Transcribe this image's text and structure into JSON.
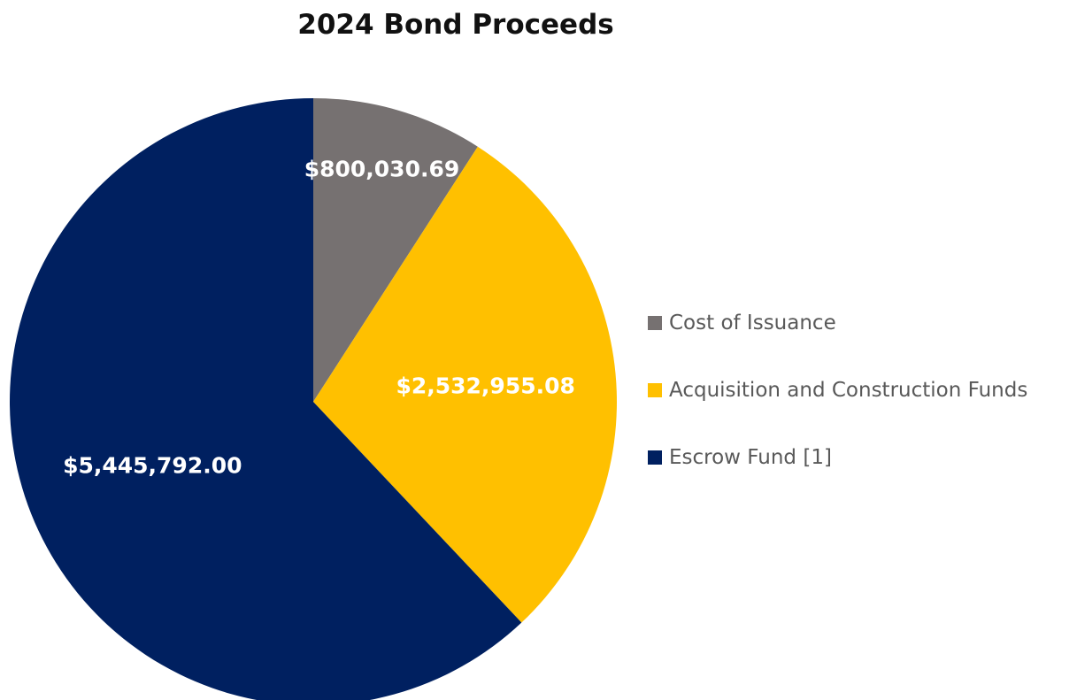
{
  "chart_data": {
    "type": "pie",
    "title": "2024 Bond Proceeds",
    "start_angle_deg": 0,
    "direction": "clockwise",
    "slices": [
      {
        "name": "Cost of Issuance",
        "value": 800030.69,
        "label": "$800,030.69",
        "color": "#767171"
      },
      {
        "name": "Acquisition and Construction Funds",
        "value": 2532955.08,
        "label": "$2,532,955.08",
        "color": "#FFC000"
      },
      {
        "name": "Escrow Fund [1]",
        "value": 5445792.0,
        "label": "$5,445,792.00",
        "color": "#002060"
      }
    ],
    "legend": {
      "position": "right"
    }
  }
}
